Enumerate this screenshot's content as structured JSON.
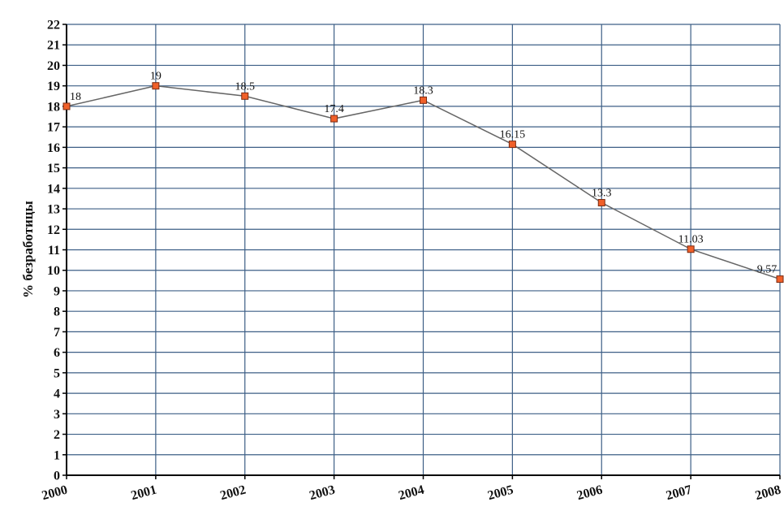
{
  "chart_data": {
    "type": "line",
    "title": "",
    "xlabel": "",
    "ylabel": "% безработицы",
    "categories": [
      "2000",
      "2001",
      "2002",
      "2003",
      "2004",
      "2005",
      "2006",
      "2007",
      "2008"
    ],
    "values": [
      18,
      19,
      18.5,
      17.4,
      18.3,
      16.15,
      13.3,
      11.03,
      9.57
    ],
    "data_labels": [
      "18",
      "19",
      "18.5",
      "17.4",
      "18.3",
      "16.15",
      "13.3",
      "11.03",
      "9.57"
    ],
    "ylim": [
      0,
      22
    ],
    "ytick_step": 1,
    "grid": true,
    "legend": "none",
    "colors": {
      "grid": "#3d5f86",
      "line": "#666666",
      "marker": "#f0602a",
      "marker_border": "#7a2a10",
      "axis": "#000000"
    }
  }
}
